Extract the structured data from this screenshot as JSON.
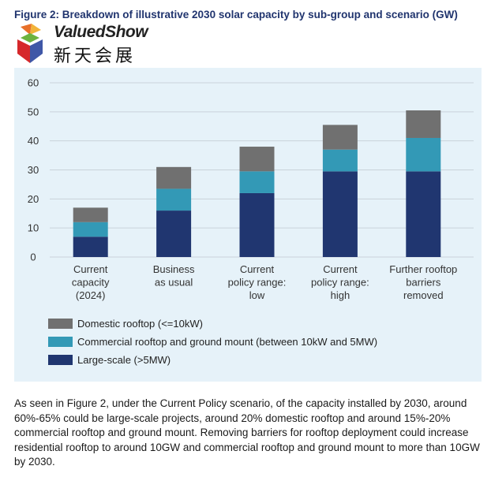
{
  "figure_title": "Figure 2: Breakdown of illustrative 2030 solar capacity by sub-group and scenario (GW)",
  "watermark": {
    "brand": "ValuedShow",
    "chinese": "新天会展"
  },
  "colors": {
    "panel_bg": "#e6f2f9",
    "grid": "#c9d2da",
    "domestic": "#707070",
    "commercial": "#3399b6",
    "large_scale": "#203670",
    "title": "#20346e"
  },
  "chart_data": {
    "type": "bar",
    "stacked": true,
    "title": "Breakdown of illustrative 2030 solar capacity by sub-group and scenario (GW)",
    "xlabel": "",
    "ylabel": "",
    "ylim": [
      0,
      60
    ],
    "yticks": [
      0,
      10,
      20,
      30,
      40,
      50,
      60
    ],
    "grid": true,
    "legend_position": "bottom-left",
    "categories": [
      [
        "Current",
        "capacity",
        "(2024)"
      ],
      [
        "Business",
        "as usual"
      ],
      [
        "Current",
        "policy range:",
        "low"
      ],
      [
        "Current",
        "policy range:",
        "high"
      ],
      [
        "Further rooftop",
        "barriers",
        "removed"
      ]
    ],
    "series": [
      {
        "name": "Large-scale (>5MW)",
        "color": "#203670",
        "values": [
          7,
          16,
          22,
          29.5,
          29.5
        ]
      },
      {
        "name": "Commercial rooftop and ground mount (between 10kW and 5MW)",
        "color": "#3399b6",
        "values": [
          5,
          7.5,
          7.5,
          7.5,
          11.5
        ]
      },
      {
        "name": "Domestic rooftop (<=10kW)",
        "color": "#707070",
        "values": [
          5,
          7.5,
          8.5,
          8.5,
          9.5
        ]
      }
    ],
    "legend_order": [
      2,
      1,
      0
    ]
  },
  "caption": "As seen in Figure 2, under the Current Policy scenario, of the capacity installed by 2030, around 60%-65% could be large-scale projects, around 20% domestic rooftop and around 15%-20% commercial rooftop and ground mount. Removing barriers for rooftop deployment could increase residential rooftop to around 10GW and commercial rooftop and ground mount to more than 10GW by 2030."
}
